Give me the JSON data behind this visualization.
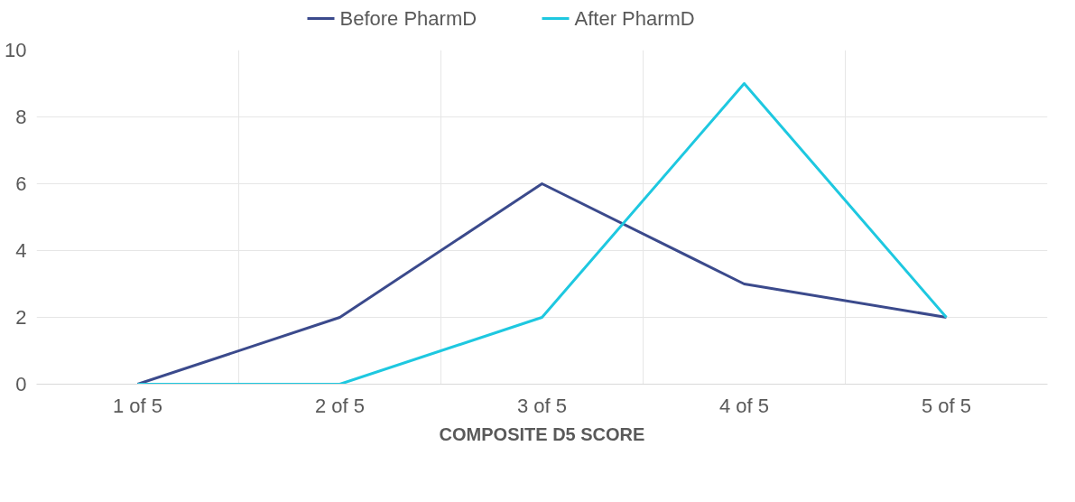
{
  "chart_data": {
    "type": "line",
    "xlabel": "COMPOSITE D5 SCORE",
    "categories": [
      "1 of 5",
      "2 of 5",
      "3 of 5",
      "4 of 5",
      "5 of 5"
    ],
    "series": [
      {
        "name": "Before PharmD",
        "color": "#3b4a8c",
        "values": [
          0,
          2,
          6,
          3,
          2
        ]
      },
      {
        "name": "After PharmD",
        "color": "#1ec8e0",
        "values": [
          0,
          0,
          2,
          9,
          2
        ]
      }
    ],
    "ylim": [
      0,
      10
    ],
    "yticks": [
      0,
      2,
      4,
      6,
      8,
      10
    ],
    "grid": true,
    "legend": "top",
    "marker": "none",
    "line_style": "solid"
  }
}
